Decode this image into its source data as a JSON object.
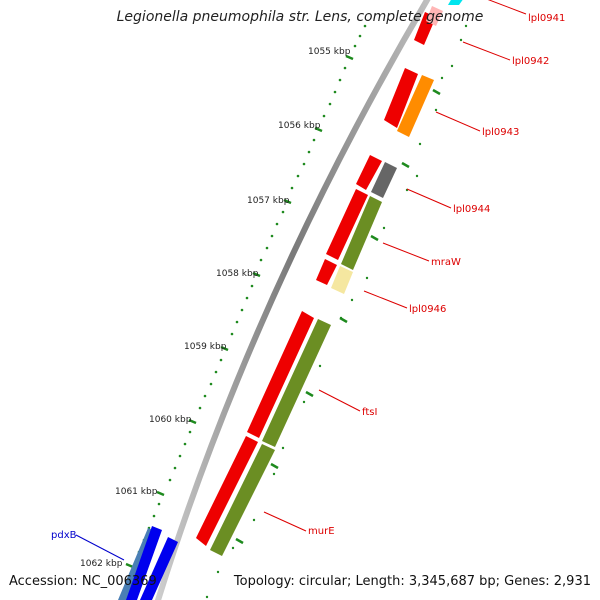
{
  "title": "Legionella pneumophila str. Lens, complete genome",
  "footer": {
    "accession": "Accession: NC_006369",
    "topology": "Topology: circular; Length: 3,345,687 bp; Genes: 2,931"
  },
  "ruler": {
    "unit": "kbp",
    "ticks": [
      "1055 kbp",
      "1056 kbp",
      "1057 kbp",
      "1058 kbp",
      "1059 kbp",
      "1060 kbp",
      "1061 kbp",
      "1062 kbp"
    ]
  },
  "colors": {
    "backbone": "#8a8a8a",
    "tick": "#1e8a1e",
    "red_gene": "#ee0000",
    "olive_gene": "#6b8e23",
    "orange_gene": "#ff8c00",
    "gray_gene": "#666666",
    "yellow_gene": "#f5e7a0",
    "cyan_gene": "#00e5ee",
    "pink_gene": "#ffb6b6",
    "blue_gene": "#0000ee",
    "label_red": "#dd0000",
    "label_blue": "#0000cc"
  },
  "genes": [
    {
      "name": "lpl0941",
      "color": "cyan_gene"
    },
    {
      "name": "lpl0942",
      "color": "pink_gene"
    },
    {
      "name": "lpl0943",
      "color": "orange_gene"
    },
    {
      "name": "lpl0944",
      "color": "gray_gene"
    },
    {
      "name": "mraW",
      "color": "olive_gene"
    },
    {
      "name": "lpl0946",
      "color": "yellow_gene"
    },
    {
      "name": "ftsI",
      "color": "olive_gene"
    },
    {
      "name": "murE",
      "color": "olive_gene"
    },
    {
      "name": "pdxB",
      "color": "blue_gene"
    }
  ],
  "labels": {
    "lpl0941": "lpl0941",
    "lpl0942": "lpl0942",
    "lpl0943": "lpl0943",
    "lpl0944": "lpl0944",
    "mraW": "mraW",
    "lpl0946": "lpl0946",
    "ftsI": "ftsI",
    "murE": "murE",
    "pdxB": "pdxB"
  }
}
